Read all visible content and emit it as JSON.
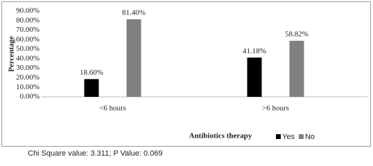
{
  "chart_data": {
    "type": "bar",
    "y_label": "Percentage",
    "legend_title": "Antibiotics therapy",
    "categories": [
      "<6 hours",
      ">6 hours"
    ],
    "series": [
      {
        "name": "Yes",
        "color": "#000000",
        "values": [
          18.6,
          41.18
        ],
        "value_labels": [
          "18.60%",
          "41.18%"
        ]
      },
      {
        "name": "No",
        "color": "#808080",
        "values": [
          81.4,
          58.82
        ],
        "value_labels": [
          "81.40%",
          "58.82%"
        ]
      }
    ],
    "ylim": [
      0,
      90
    ],
    "yticks": [
      {
        "value": 0,
        "label": "0.00%"
      },
      {
        "value": 10,
        "label": "10.00%"
      },
      {
        "value": 20,
        "label": "20.00%"
      },
      {
        "value": 30,
        "label": "30.00%"
      },
      {
        "value": 40,
        "label": "40.00%"
      },
      {
        "value": 50,
        "label": "50.00%"
      },
      {
        "value": 60,
        "label": "60.00%"
      },
      {
        "value": 70,
        "label": "70.00%"
      },
      {
        "value": 80,
        "label": "80.00%"
      },
      {
        "value": 90,
        "label": "90.00%"
      }
    ],
    "legend_position": "bottom"
  },
  "footnote": "Chi Square value: 3.311; P Value: 0.069"
}
